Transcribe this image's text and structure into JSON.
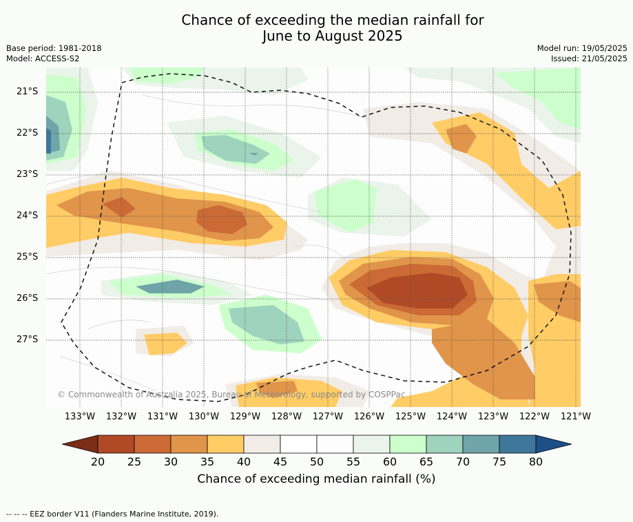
{
  "title_line1": "Chance of exceeding the median rainfall for",
  "title_line2": "June to August 2025",
  "base_period": "Base period: 1981-2018",
  "model": "Model: ACCESS-S2",
  "model_run": "Model run: 19/05/2025",
  "issued": "Issued: 21/05/2025",
  "lat_labels": [
    "21°S",
    "22°S",
    "23°S",
    "24°S",
    "25°S",
    "26°S",
    "27°S"
  ],
  "lon_labels": [
    "133°W",
    "132°W",
    "131°W",
    "130°W",
    "129°W",
    "128°W",
    "127°W",
    "126°W",
    "125°W",
    "124°W",
    "123°W",
    "122°W",
    "121°W"
  ],
  "copyright": "© Commonwealth of Australia 2025, Bureau of Meteorology, supported by COSPPac",
  "colorbar": {
    "ticks": [
      "20",
      "25",
      "30",
      "35",
      "40",
      "45",
      "50",
      "55",
      "60",
      "65",
      "70",
      "75",
      "80"
    ],
    "label": "Chance of exceeding median rainfall (%)",
    "colors": [
      "#7a2e17",
      "#b04a26",
      "#cc6a35",
      "#e0954a",
      "#ffcc66",
      "#f2ece6",
      "#ffffff",
      "#fcfdfc",
      "#eaf4ea",
      "#ccffcc",
      "#9ed3bd",
      "#6fa5a8",
      "#3f779a",
      "#1e4f86"
    ]
  },
  "legend_eez": "--  --  -- EEZ border V11 (Flanders Marine Institute, 2019)."
}
